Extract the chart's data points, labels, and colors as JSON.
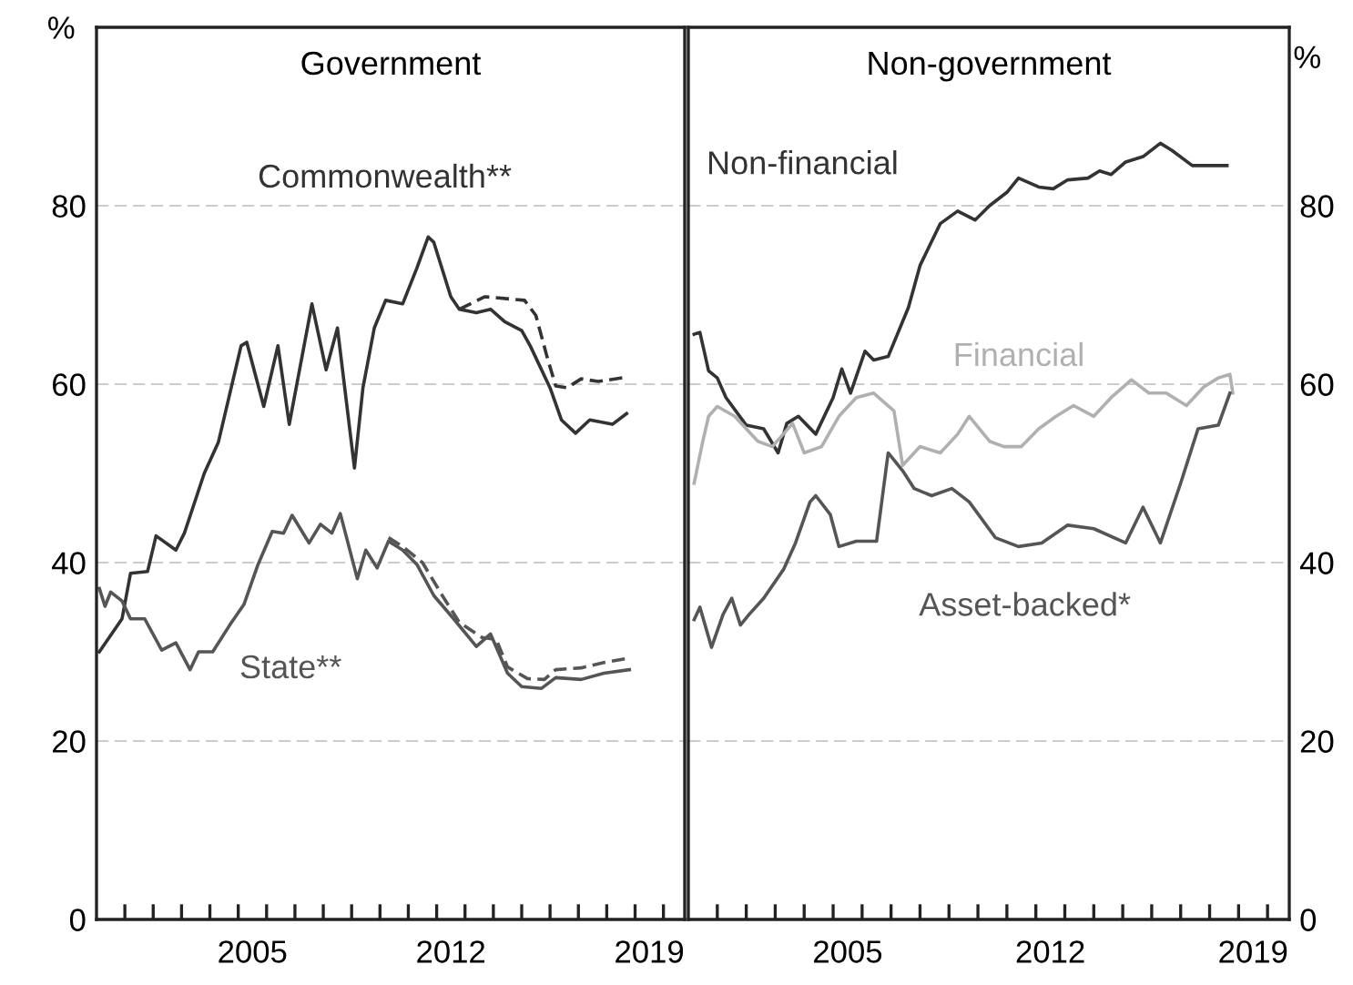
{
  "chart_data": [
    {
      "type": "line",
      "title": "Government",
      "ylabel": "%",
      "xlim": [
        2000,
        2020.75
      ],
      "ylim": [
        0,
        100
      ],
      "xticks": [
        {
          "value": 2001,
          "label": null
        },
        {
          "value": 2002,
          "label": null
        },
        {
          "value": 2003,
          "label": null
        },
        {
          "value": 2004,
          "label": null
        },
        {
          "value": 2005,
          "label": null
        },
        {
          "value": 2006,
          "label": null
        },
        {
          "value": 2007,
          "label": null
        },
        {
          "value": 2008,
          "label": null
        },
        {
          "value": 2009,
          "label": null
        },
        {
          "value": 2010,
          "label": null
        },
        {
          "value": 2011,
          "label": null
        },
        {
          "value": 2012,
          "label": null
        },
        {
          "value": 2013,
          "label": null
        },
        {
          "value": 2014,
          "label": null
        },
        {
          "value": 2015,
          "label": null
        },
        {
          "value": 2016,
          "label": null
        },
        {
          "value": 2017,
          "label": null
        },
        {
          "value": 2018,
          "label": null
        },
        {
          "value": 2019,
          "label": null
        },
        {
          "value": 2020,
          "label": null
        },
        {
          "value": 2005.5,
          "label": "2005"
        },
        {
          "value": 2012.5,
          "label": "2012"
        },
        {
          "value": 2019.5,
          "label": "2019"
        }
      ],
      "yticks": [
        0,
        20,
        40,
        60,
        80
      ],
      "grid": "y",
      "series": [
        {
          "name": "Commonwealth**",
          "color": "#333333",
          "line_style": "solid",
          "x": [
            2000.1,
            2000.9,
            2001.2,
            2001.8,
            2002.1,
            2002.8,
            2003.1,
            2003.8,
            2004.3,
            2005.1,
            2005.3,
            2005.9,
            2006.4,
            2006.8,
            2007.6,
            2008.1,
            2008.5,
            2009.1,
            2009.4,
            2009.8,
            2010.2,
            2010.8,
            2011.3,
            2011.7,
            2011.9,
            2012.5,
            2012.8,
            2013.4,
            2013.9,
            2014.4,
            2015.0,
            2015.3,
            2016.0,
            2016.4,
            2016.9,
            2017.4,
            2018.2,
            2018.7
          ],
          "values": [
            30,
            33.7,
            38.8,
            39,
            43,
            41.4,
            43.3,
            50,
            53.5,
            64.3,
            64.7,
            57.5,
            64.3,
            55.5,
            69,
            61.6,
            66.3,
            50.6,
            59.6,
            66.3,
            69.4,
            69,
            73,
            76.5,
            75.9,
            69.8,
            68.4,
            68,
            68.4,
            67,
            66,
            64.3,
            59.6,
            56,
            54.5,
            56,
            55.5,
            56.7
          ]
        },
        {
          "color": "#333333",
          "line_style": "dashed",
          "x": [
            2012.8,
            2013.7,
            2014.4,
            2015.1,
            2015.5,
            2015.9,
            2016.2,
            2016.6,
            2017.1,
            2017.7,
            2018.7
          ],
          "values": [
            68.4,
            69.8,
            69.6,
            69.4,
            67.7,
            63,
            59.8,
            59.6,
            60.6,
            60.3,
            60.8
          ]
        },
        {
          "name": "State**",
          "color": "#555555",
          "line_style": "solid",
          "x": [
            2000.1,
            2000.3,
            2000.5,
            2000.9,
            2001.2,
            2001.7,
            2002.3,
            2002.8,
            2003.3,
            2003.6,
            2004.1,
            2004.7,
            2005.2,
            2005.7,
            2006.2,
            2006.6,
            2006.9,
            2007.5,
            2007.9,
            2008.3,
            2008.6,
            2009.2,
            2009.5,
            2009.9,
            2010.3,
            2010.8,
            2011.3,
            2011.9,
            2012.6,
            2013.4,
            2013.9,
            2014.5,
            2015.0,
            2015.7,
            2016.2,
            2017.1,
            2017.9,
            2018.8
          ],
          "values": [
            37.1,
            35.1,
            36.7,
            35.7,
            33.7,
            33.7,
            30.2,
            31,
            28,
            30,
            30,
            33,
            35.3,
            39.8,
            43.5,
            43.3,
            45.3,
            42.2,
            44.3,
            43.3,
            45.5,
            38.2,
            41.4,
            39.4,
            42.4,
            41.4,
            39.8,
            36.3,
            33.7,
            30.6,
            32,
            27.6,
            26.1,
            25.9,
            27.1,
            26.9,
            27.6,
            28
          ]
        },
        {
          "color": "#555555",
          "line_style": "dashed",
          "x": [
            2010.3,
            2010.8,
            2011.5,
            2012.2,
            2012.8,
            2013.6,
            2014.1,
            2014.5,
            2015.2,
            2015.8,
            2016.2,
            2017.1,
            2017.9,
            2018.8
          ],
          "values": [
            42.8,
            41.8,
            40,
            36.3,
            33.3,
            31.6,
            31.4,
            28.3,
            27,
            26.9,
            28,
            28.2,
            28.8,
            29.3
          ]
        }
      ]
    },
    {
      "type": "line",
      "title": "Non-government",
      "ylabel": "%",
      "xlim": [
        2000,
        2020.75
      ],
      "ylim": [
        0,
        100
      ],
      "xticks": [
        {
          "value": 2001,
          "label": null
        },
        {
          "value": 2002,
          "label": null
        },
        {
          "value": 2003,
          "label": null
        },
        {
          "value": 2004,
          "label": null
        },
        {
          "value": 2005,
          "label": null
        },
        {
          "value": 2006,
          "label": null
        },
        {
          "value": 2007,
          "label": null
        },
        {
          "value": 2008,
          "label": null
        },
        {
          "value": 2009,
          "label": null
        },
        {
          "value": 2010,
          "label": null
        },
        {
          "value": 2011,
          "label": null
        },
        {
          "value": 2012,
          "label": null
        },
        {
          "value": 2013,
          "label": null
        },
        {
          "value": 2014,
          "label": null
        },
        {
          "value": 2015,
          "label": null
        },
        {
          "value": 2016,
          "label": null
        },
        {
          "value": 2017,
          "label": null
        },
        {
          "value": 2018,
          "label": null
        },
        {
          "value": 2019,
          "label": null
        },
        {
          "value": 2020,
          "label": null
        },
        {
          "value": 2005.5,
          "label": "2005"
        },
        {
          "value": 2012.5,
          "label": "2012"
        },
        {
          "value": 2019.5,
          "label": "2019"
        }
      ],
      "yticks": [
        0,
        20,
        40,
        60,
        80
      ],
      "grid": "y",
      "series": [
        {
          "name": "Non-financial",
          "color": "#333333",
          "x": [
            2000.2,
            2000.4,
            2000.7,
            2001.0,
            2001.3,
            2002.0,
            2002.6,
            2003.1,
            2003.4,
            2003.8,
            2004.4,
            2005.0,
            2005.3,
            2005.6,
            2006.1,
            2006.4,
            2006.9,
            2007.6,
            2008.0,
            2008.7,
            2009.3,
            2009.9,
            2010.4,
            2011.0,
            2011.4,
            2012.1,
            2012.6,
            2013.1,
            2013.8,
            2014.2,
            2014.6,
            2015.1,
            2015.7,
            2016.3,
            2016.7,
            2017.4,
            2017.9,
            2018.6
          ],
          "values": [
            65.6,
            65.8,
            61.5,
            60.7,
            58.5,
            55.4,
            55,
            52.3,
            55.6,
            56.4,
            54.4,
            58.5,
            61.7,
            59,
            63.7,
            62.7,
            63.1,
            68.6,
            73.3,
            78,
            79.4,
            78.4,
            80,
            81.5,
            83.1,
            82.1,
            81.9,
            82.9,
            83.1,
            83.9,
            83.5,
            84.9,
            85.5,
            87,
            86.2,
            84.5,
            84.5,
            84.5
          ]
        },
        {
          "name": "Financial",
          "color": "#b0b0b0",
          "x": [
            2000.2,
            2000.5,
            2000.7,
            2001.0,
            2001.6,
            2002.4,
            2002.9,
            2003.6,
            2004.0,
            2004.6,
            2005.2,
            2005.8,
            2006.4,
            2007.1,
            2007.4,
            2008.0,
            2008.7,
            2009.3,
            2009.7,
            2010.4,
            2010.9,
            2011.5,
            2012.1,
            2012.7,
            2013.3,
            2014.0,
            2014.6,
            2015.3,
            2015.9,
            2016.5,
            2017.2,
            2017.8,
            2018.3,
            2018.7,
            2018.8
          ],
          "values": [
            48.9,
            53.6,
            56.4,
            57.5,
            56.4,
            53.6,
            53,
            55.6,
            52.3,
            53,
            56.4,
            58.5,
            59,
            57,
            50.9,
            53,
            52.3,
            54.4,
            56.4,
            53.6,
            53,
            53,
            55,
            56.4,
            57.6,
            56.4,
            58.5,
            60.5,
            59,
            59,
            57.6,
            59.7,
            60.7,
            61.1,
            59
          ]
        },
        {
          "name": "Asset-backed*",
          "color": "#555555",
          "x": [
            2000.2,
            2000.4,
            2000.8,
            2001.2,
            2001.5,
            2001.8,
            2002.1,
            2002.6,
            2003.3,
            2003.7,
            2004.2,
            2004.4,
            2004.9,
            2005.2,
            2005.8,
            2006.5,
            2006.9,
            2007.4,
            2007.8,
            2008.4,
            2009.1,
            2009.7,
            2010.6,
            2011.4,
            2012.2,
            2013.1,
            2014.0,
            2015.1,
            2015.7,
            2016.3,
            2017.0,
            2017.6,
            2018.3,
            2018.7
          ],
          "values": [
            33.6,
            35,
            30.5,
            34.2,
            36,
            33,
            34.2,
            36,
            39.3,
            42.2,
            46.8,
            47.5,
            45.4,
            41.8,
            42.4,
            42.4,
            52.3,
            50.3,
            48.3,
            47.5,
            48.3,
            46.8,
            42.8,
            41.8,
            42.2,
            44.2,
            43.8,
            42.2,
            46.2,
            42.2,
            48.9,
            55,
            55.4,
            59
          ]
        }
      ]
    }
  ]
}
